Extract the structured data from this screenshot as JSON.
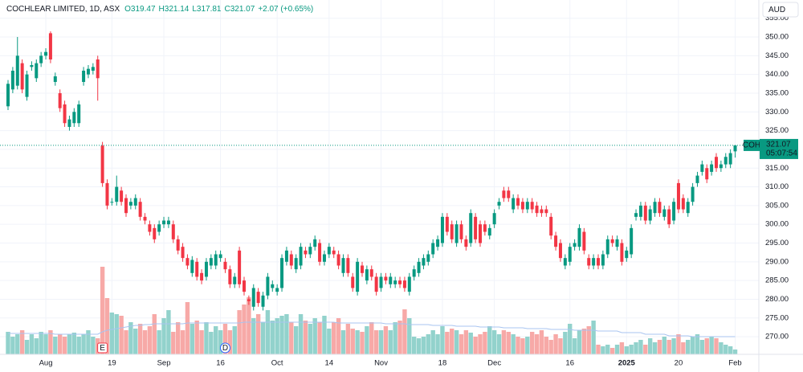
{
  "header": {
    "title": "COCHLEAR LIMITED, 1D, ASX",
    "open": "O319.47",
    "high": "H321.14",
    "low": "L317.81",
    "close": "C321.07",
    "change": "+2.07 (+0.65%)"
  },
  "currency": "AUD",
  "last_price": {
    "symbol": "COH",
    "price": "321.07",
    "countdown": "05:07:54"
  },
  "events": [
    {
      "label": "E"
    },
    {
      "label": "D"
    }
  ],
  "chart_data": {
    "type": "candlestick",
    "up_color": "#089981",
    "down_color": "#f23645",
    "volume_up_color": "#92d2cc",
    "volume_down_color": "#f7a9a7",
    "volume_ma_color": "#a8c4f0",
    "grid": true,
    "ylim": [
      265.3,
      359.87
    ],
    "yticks": [
      {
        "value": 270,
        "label": "270.00"
      },
      {
        "value": 275,
        "label": "275.00"
      },
      {
        "value": 280,
        "label": "280.00"
      },
      {
        "value": 285,
        "label": "285.00"
      },
      {
        "value": 290,
        "label": "290.00"
      },
      {
        "value": 295,
        "label": "295.00"
      },
      {
        "value": 300,
        "label": "300.00"
      },
      {
        "value": 305,
        "label": "305.00"
      },
      {
        "value": 310,
        "label": "310.00"
      },
      {
        "value": 315,
        "label": "315.00"
      },
      {
        "value": 320,
        "label": "320.00"
      },
      {
        "value": 325,
        "label": "325.00"
      },
      {
        "value": 330,
        "label": "330.00"
      },
      {
        "value": 335,
        "label": "335.00"
      },
      {
        "value": 340,
        "label": "340.00"
      },
      {
        "value": 345,
        "label": "345.00"
      },
      {
        "value": 350,
        "label": "350.00"
      },
      {
        "value": 355,
        "label": "355.00"
      }
    ],
    "volume_lim": [
      0,
      4.41
    ],
    "categories": [
      null,
      null,
      null,
      null,
      null,
      null,
      null,
      null,
      "Aug",
      null,
      null,
      null,
      null,
      null,
      null,
      null,
      null,
      null,
      null,
      null,
      null,
      null,
      "19",
      null,
      null,
      null,
      null,
      null,
      null,
      null,
      null,
      null,
      null,
      "Sep",
      null,
      null,
      null,
      null,
      null,
      null,
      null,
      null,
      null,
      null,
      null,
      "16",
      null,
      null,
      null,
      null,
      null,
      null,
      null,
      null,
      null,
      null,
      null,
      "Oct",
      null,
      null,
      null,
      null,
      null,
      null,
      null,
      null,
      null,
      null,
      "14",
      null,
      null,
      null,
      null,
      null,
      null,
      null,
      null,
      null,
      null,
      "Nov",
      null,
      null,
      null,
      null,
      null,
      null,
      null,
      null,
      null,
      null,
      null,
      null,
      "18",
      null,
      null,
      null,
      null,
      null,
      null,
      null,
      null,
      null,
      null,
      "Dec",
      null,
      null,
      null,
      null,
      null,
      null,
      null,
      null,
      null,
      null,
      null,
      null,
      null,
      null,
      null,
      "16",
      null,
      null,
      null,
      null,
      null,
      null,
      null,
      null,
      null,
      null,
      null,
      "2025",
      null,
      null,
      null,
      null,
      null,
      null,
      null,
      null,
      null,
      null,
      "20",
      null,
      null,
      null,
      null,
      null,
      null,
      null,
      null,
      null,
      null,
      null,
      "Feb"
    ],
    "open": [
      331.5,
      336,
      337,
      343,
      334,
      342,
      339,
      343,
      345,
      351,
      338,
      335,
      332,
      326,
      327,
      327,
      338,
      340,
      341,
      344,
      321,
      311,
      306,
      306,
      309,
      307,
      305,
      305,
      306,
      302,
      300,
      299,
      298,
      300,
      300,
      300,
      296,
      294,
      291,
      287,
      290,
      287,
      286,
      289,
      289,
      291,
      290,
      288,
      284,
      293,
      285,
      280,
      278,
      282,
      278,
      281,
      283,
      282,
      283,
      290,
      292,
      288,
      289,
      293,
      292,
      294,
      295,
      290,
      292,
      293,
      292,
      287,
      291,
      286,
      282,
      289,
      285,
      288,
      286,
      283,
      286,
      284,
      284,
      285,
      285,
      282,
      286,
      287,
      289,
      290,
      292,
      294,
      295,
      302,
      300,
      295,
      300,
      296,
      295,
      302,
      300,
      300,
      297,
      300,
      305,
      309,
      309,
      304,
      307,
      306,
      304,
      306,
      305,
      304,
      304,
      302,
      297,
      295,
      289,
      290,
      294,
      294,
      298,
      291,
      289,
      291,
      289,
      292,
      296,
      294,
      295,
      291,
      292,
      302,
      302,
      305,
      301,
      303,
      306,
      302,
      304,
      301,
      311,
      307,
      303,
      306,
      311,
      314,
      315,
      314,
      318,
      315,
      316,
      316,
      319.47
    ],
    "high": [
      338.5,
      342,
      350,
      344,
      341,
      343.5,
      344,
      346,
      347,
      351.5,
      340.5,
      336,
      333,
      329,
      331,
      333,
      342,
      342.5,
      343,
      345,
      322,
      312,
      307,
      313,
      310,
      308,
      307,
      308,
      307,
      303,
      301,
      300,
      301,
      302,
      302,
      301,
      297,
      295,
      292,
      291.5,
      291,
      288,
      291,
      292,
      293,
      293,
      291,
      289,
      287,
      294,
      286,
      281,
      284,
      283,
      282,
      287,
      285,
      284,
      292,
      294,
      293,
      292,
      295,
      294,
      295,
      297,
      296,
      293,
      295,
      294,
      293,
      292,
      292,
      287,
      291,
      290,
      289,
      289,
      287,
      287,
      287,
      287,
      286,
      286,
      286,
      287,
      289,
      291,
      292,
      293,
      296,
      297,
      303,
      303,
      301,
      301,
      301,
      297,
      304,
      303,
      301,
      301,
      300,
      304,
      307,
      310,
      310,
      308,
      308,
      307,
      307,
      307,
      306,
      305,
      305,
      303,
      298,
      296,
      292,
      295,
      296,
      300,
      299,
      292,
      292,
      292,
      293,
      297,
      297,
      297,
      296,
      294,
      300,
      304,
      306,
      306,
      305,
      307,
      307,
      305,
      305,
      307,
      312,
      308,
      307,
      311,
      314,
      317,
      316,
      317,
      319,
      317,
      319,
      320,
      321.14
    ],
    "low": [
      330.5,
      335,
      336,
      335,
      333,
      341,
      338,
      342,
      344,
      343,
      337,
      330,
      326,
      325,
      326,
      326,
      337,
      339,
      340,
      333,
      310,
      304,
      305,
      305,
      305,
      302,
      304,
      304,
      301,
      300,
      297,
      295,
      297,
      299,
      299,
      295,
      292,
      290,
      288,
      286,
      285,
      284,
      285,
      288,
      288,
      290,
      287,
      283,
      283,
      283,
      281,
      278.5,
      277,
      278,
      277,
      280,
      282,
      281,
      282,
      289,
      288,
      287,
      288,
      291,
      291,
      293,
      289,
      289,
      291,
      291,
      288,
      286,
      286,
      282,
      281,
      286,
      284,
      285,
      281,
      282,
      284,
      283,
      283,
      283,
      282,
      281,
      285,
      286,
      288,
      289,
      291,
      293,
      294,
      297,
      295,
      294,
      295,
      293,
      294,
      295,
      294,
      297,
      296,
      299,
      304,
      306,
      306,
      303,
      304,
      303,
      303,
      303,
      302,
      302,
      302,
      296,
      293,
      290,
      288,
      289,
      293,
      293,
      292,
      288,
      288,
      288,
      288,
      291,
      294,
      293,
      289,
      290,
      291,
      301,
      301,
      300,
      300,
      302,
      302,
      301,
      299,
      300,
      303,
      303,
      302,
      305,
      310,
      313,
      311,
      313,
      314,
      314,
      315,
      315,
      317.81
    ],
    "close": [
      337.5,
      341,
      345,
      336,
      340,
      342.5,
      343,
      345,
      346,
      344,
      339.5,
      331,
      327,
      328,
      330,
      332,
      341,
      341.5,
      342,
      339,
      311,
      305,
      306,
      310,
      306,
      303,
      306,
      307,
      302,
      301,
      298,
      296,
      300,
      301,
      301,
      296,
      293,
      291,
      289,
      290.5,
      286,
      285,
      290,
      291,
      292,
      292,
      288,
      284,
      286,
      284,
      282,
      279.5,
      283,
      279,
      281,
      286,
      284,
      283,
      291,
      293,
      289,
      291,
      294,
      292,
      294,
      296,
      290,
      292,
      294,
      292,
      289,
      291,
      287,
      283,
      290,
      287,
      288,
      286,
      282,
      286,
      285,
      286,
      285,
      284,
      283,
      286,
      288,
      290,
      291,
      292,
      295,
      296,
      302,
      298,
      296,
      300,
      296,
      294,
      303,
      296,
      295,
      298,
      299,
      303,
      306,
      307,
      307,
      307,
      305,
      304,
      306,
      304,
      303,
      303,
      303,
      297,
      294,
      291,
      291,
      294,
      295,
      299,
      293,
      289,
      291,
      289,
      292,
      296,
      295,
      296,
      290,
      293,
      299,
      303,
      305,
      301,
      304,
      306,
      303,
      304,
      300,
      306,
      304,
      304,
      306,
      310,
      313,
      316,
      312,
      316,
      315,
      316,
      318,
      319,
      321.07
    ],
    "volume": [
      0.28,
      0.22,
      0.25,
      0.3,
      0.18,
      0.25,
      0.2,
      0.28,
      0.25,
      0.3,
      0.22,
      0.25,
      0.22,
      0.25,
      0.27,
      0.22,
      0.25,
      0.3,
      0.22,
      0.2,
      1.09,
      0.7,
      0.52,
      0.5,
      0.48,
      0.3,
      0.4,
      0.32,
      0.38,
      0.3,
      0.35,
      0.5,
      0.3,
      0.45,
      0.55,
      0.28,
      0.4,
      0.3,
      0.65,
      0.38,
      0.42,
      0.3,
      0.4,
      0.28,
      0.35,
      0.3,
      0.38,
      0.3,
      0.35,
      0.55,
      0.62,
      0.71,
      0.45,
      0.5,
      0.4,
      0.55,
      0.42,
      0.45,
      0.48,
      0.5,
      0.4,
      0.35,
      0.5,
      0.42,
      0.38,
      0.45,
      0.4,
      0.48,
      0.32,
      0.4,
      0.45,
      0.3,
      0.38,
      0.32,
      0.3,
      0.28,
      0.35,
      0.4,
      0.3,
      0.3,
      0.35,
      0.3,
      0.4,
      0.42,
      0.56,
      0.45,
      0.22,
      0.2,
      0.22,
      0.25,
      0.3,
      0.25,
      0.35,
      0.28,
      0.32,
      0.3,
      0.25,
      0.3,
      0.27,
      0.22,
      0.25,
      0.28,
      0.35,
      0.3,
      0.25,
      0.3,
      0.28,
      0.25,
      0.22,
      0.2,
      0.22,
      0.28,
      0.25,
      0.3,
      0.22,
      0.18,
      0.25,
      0.2,
      0.28,
      0.38,
      0.2,
      0.3,
      0.32,
      0.35,
      0.42,
      0.12,
      0.1,
      0.12,
      0.08,
      0.12,
      0.15,
      0.1,
      0.12,
      0.15,
      0.18,
      0.12,
      0.2,
      0.15,
      0.18,
      0.22,
      0.18,
      0.2,
      0.25,
      0.15,
      0.18,
      0.22,
      0.25,
      0.18,
      0.2,
      0.22,
      0.2,
      0.15,
      0.12,
      0.1,
      0.06
    ],
    "volume_ma": [
      0.26,
      0.26,
      0.26,
      0.26,
      0.26,
      0.26,
      0.26,
      0.26,
      0.26,
      0.26,
      0.25,
      0.25,
      0.25,
      0.25,
      0.25,
      0.25,
      0.25,
      0.25,
      0.25,
      0.25,
      0.28,
      0.3,
      0.31,
      0.32,
      0.33,
      0.34,
      0.35,
      0.36,
      0.36,
      0.37,
      0.37,
      0.38,
      0.38,
      0.38,
      0.38,
      0.38,
      0.38,
      0.38,
      0.39,
      0.39,
      0.39,
      0.39,
      0.39,
      0.39,
      0.39,
      0.39,
      0.39,
      0.39,
      0.39,
      0.39,
      0.4,
      0.4,
      0.4,
      0.4,
      0.4,
      0.4,
      0.4,
      0.4,
      0.4,
      0.4,
      0.4,
      0.4,
      0.4,
      0.4,
      0.4,
      0.4,
      0.4,
      0.4,
      0.4,
      0.4,
      0.39,
      0.39,
      0.39,
      0.39,
      0.39,
      0.39,
      0.39,
      0.39,
      0.39,
      0.39,
      0.38,
      0.38,
      0.38,
      0.38,
      0.38,
      0.37,
      0.37,
      0.37,
      0.37,
      0.37,
      0.36,
      0.36,
      0.36,
      0.36,
      0.36,
      0.35,
      0.35,
      0.35,
      0.35,
      0.35,
      0.34,
      0.34,
      0.34,
      0.34,
      0.34,
      0.33,
      0.33,
      0.33,
      0.33,
      0.33,
      0.32,
      0.32,
      0.32,
      0.32,
      0.32,
      0.31,
      0.31,
      0.31,
      0.31,
      0.31,
      0.3,
      0.3,
      0.3,
      0.3,
      0.3,
      0.29,
      0.29,
      0.29,
      0.29,
      0.29,
      0.27,
      0.27,
      0.27,
      0.27,
      0.27,
      0.25,
      0.25,
      0.25,
      0.25,
      0.25,
      0.23,
      0.23,
      0.23,
      0.23,
      0.23,
      0.22,
      0.22,
      0.22,
      0.22,
      0.22,
      0.22,
      0.22,
      0.22,
      0.22,
      0.22
    ]
  }
}
